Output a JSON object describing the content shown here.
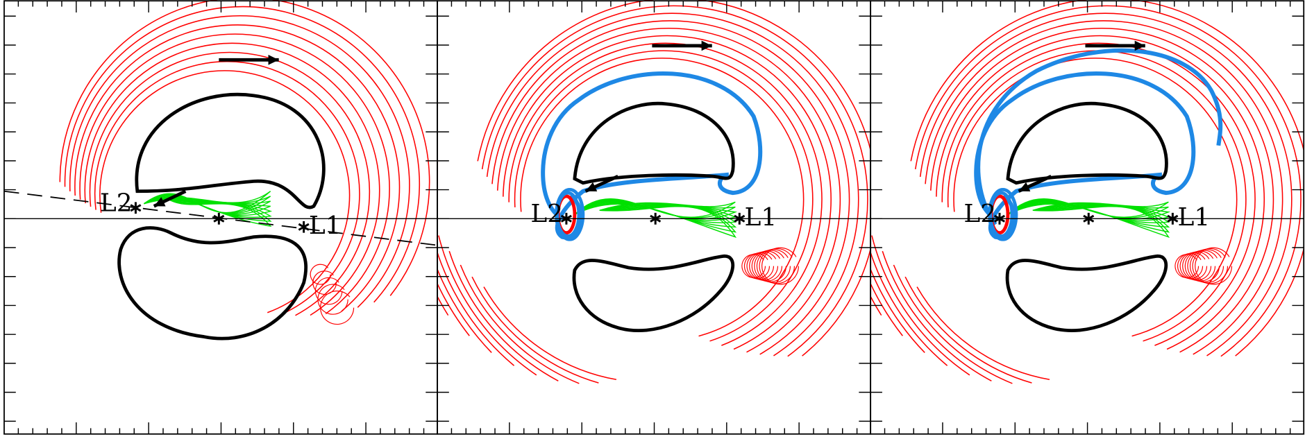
{
  "panels": [
    {
      "labels": [
        "L2",
        "L1"
      ]
    },
    {
      "labels": [
        "L2",
        "L1"
      ]
    },
    {
      "labels": [
        "L2",
        "L1"
      ]
    }
  ]
}
